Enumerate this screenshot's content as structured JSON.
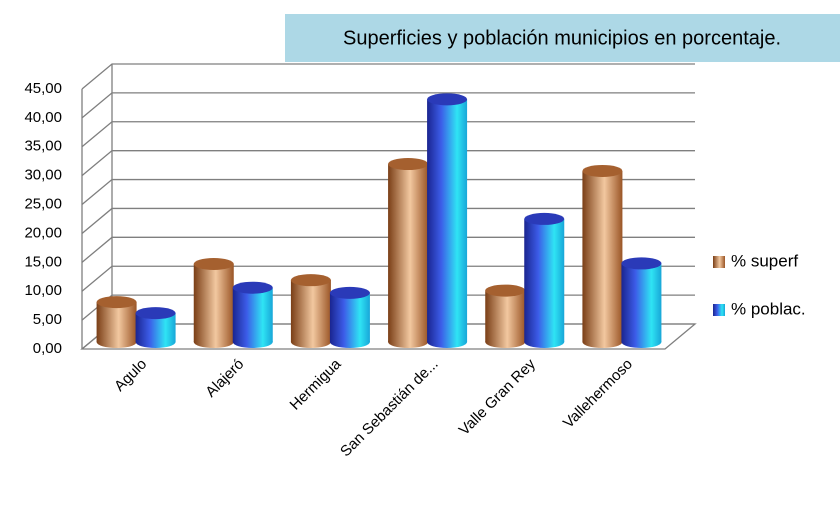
{
  "chart_data": {
    "type": "bar3d",
    "title": "Superficies y población municipios en porcentaje.",
    "categories": [
      "Agulo",
      "Alajeró",
      "Hermigua",
      "San Sebastián de...",
      "Valle Gran Rey",
      "Vallehermoso"
    ],
    "series": [
      {
        "name": "% superf",
        "color": "#c07a45",
        "values": [
          6.9,
          13.5,
          10.7,
          30.8,
          8.9,
          29.6
        ]
      },
      {
        "name": "% poblac.",
        "color": "#2a7fe0",
        "values": [
          5.0,
          9.4,
          8.5,
          42.0,
          21.3,
          13.6
        ]
      }
    ],
    "ylim": [
      0,
      45
    ],
    "yticks": [
      {
        "value": 0,
        "label": "0,00"
      },
      {
        "value": 5,
        "label": "5,00"
      },
      {
        "value": 10,
        "label": "10,00"
      },
      {
        "value": 15,
        "label": "15,00"
      },
      {
        "value": 20,
        "label": "20,00"
      },
      {
        "value": 25,
        "label": "25,00"
      },
      {
        "value": 30,
        "label": "30,00"
      },
      {
        "value": 35,
        "label": "35,00"
      },
      {
        "value": 40,
        "label": "40,00"
      },
      {
        "value": 45,
        "label": "45,00"
      }
    ],
    "grid": true,
    "legend": "right"
  }
}
